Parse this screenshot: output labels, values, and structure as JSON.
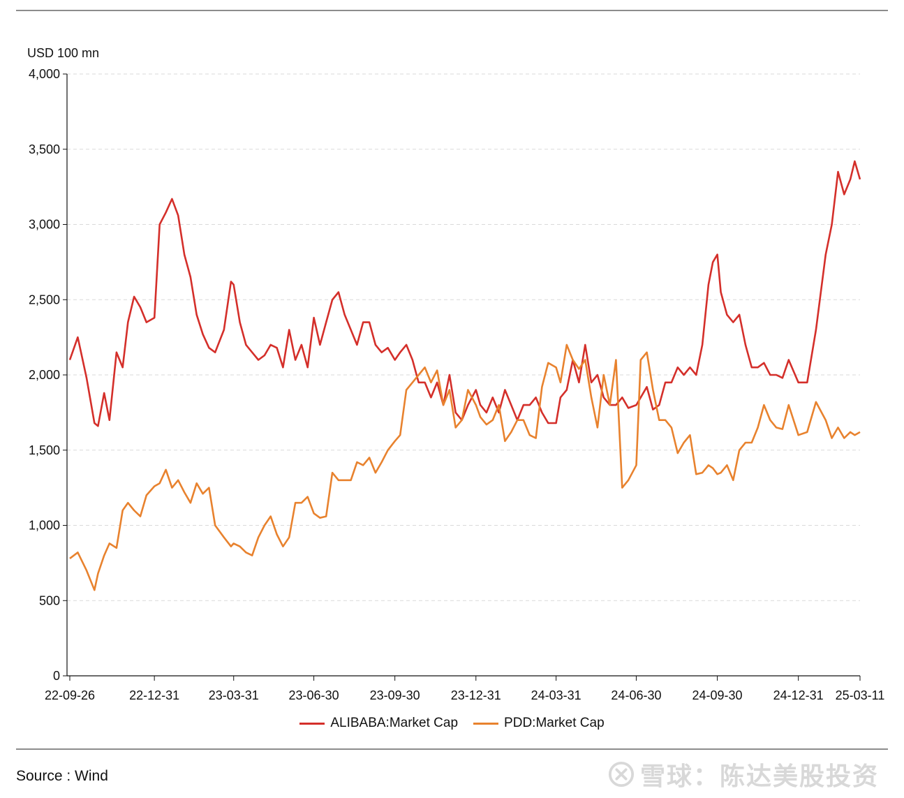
{
  "chart_data": {
    "type": "line",
    "title": "",
    "ylabel": "USD 100 mn",
    "xlabel": "",
    "ylim": [
      0,
      4000
    ],
    "y_ticks": [
      0,
      500,
      1000,
      1500,
      2000,
      2500,
      3000,
      3500,
      4000
    ],
    "y_tick_labels": [
      "0",
      "500",
      "1,000",
      "1,500",
      "2,000",
      "2,500",
      "3,000",
      "3,500",
      "4,000"
    ],
    "x_tick_labels": [
      "22-09-26",
      "22-12-31",
      "23-03-31",
      "23-06-30",
      "23-09-30",
      "23-12-31",
      "24-03-31",
      "24-06-30",
      "24-09-30",
      "24-12-31",
      "25-03-11"
    ],
    "x_tick_dates": [
      "2022-09-26",
      "2022-12-31",
      "2023-03-31",
      "2023-06-30",
      "2023-09-30",
      "2023-12-31",
      "2024-03-31",
      "2024-06-30",
      "2024-09-30",
      "2024-12-31",
      "2025-03-11"
    ],
    "grid": "horizontal dashed",
    "legend_position": "bottom",
    "series": [
      {
        "name": "ALIBABA:Market Cap",
        "color": "#d42f2a",
        "x": [
          "2022-09-26",
          "2022-10-05",
          "2022-10-15",
          "2022-10-24",
          "2022-10-28",
          "2022-11-04",
          "2022-11-10",
          "2022-11-18",
          "2022-11-25",
          "2022-12-01",
          "2022-12-08",
          "2022-12-15",
          "2022-12-22",
          "2022-12-31",
          "2023-01-06",
          "2023-01-13",
          "2023-01-20",
          "2023-01-27",
          "2023-02-03",
          "2023-02-10",
          "2023-02-17",
          "2023-02-24",
          "2023-03-03",
          "2023-03-10",
          "2023-03-20",
          "2023-03-28",
          "2023-03-31",
          "2023-04-07",
          "2023-04-14",
          "2023-04-21",
          "2023-04-28",
          "2023-05-05",
          "2023-05-12",
          "2023-05-19",
          "2023-05-26",
          "2023-06-02",
          "2023-06-09",
          "2023-06-16",
          "2023-06-23",
          "2023-06-30",
          "2023-07-07",
          "2023-07-14",
          "2023-07-21",
          "2023-07-28",
          "2023-08-04",
          "2023-08-11",
          "2023-08-18",
          "2023-08-25",
          "2023-09-01",
          "2023-09-08",
          "2023-09-15",
          "2023-09-22",
          "2023-09-30",
          "2023-10-06",
          "2023-10-13",
          "2023-10-20",
          "2023-10-27",
          "2023-11-03",
          "2023-11-10",
          "2023-11-17",
          "2023-11-24",
          "2023-12-01",
          "2023-12-08",
          "2023-12-15",
          "2023-12-22",
          "2023-12-31",
          "2024-01-05",
          "2024-01-12",
          "2024-01-19",
          "2024-01-26",
          "2024-02-02",
          "2024-02-09",
          "2024-02-16",
          "2024-02-23",
          "2024-03-01",
          "2024-03-08",
          "2024-03-15",
          "2024-03-22",
          "2024-03-31",
          "2024-04-05",
          "2024-04-12",
          "2024-04-19",
          "2024-04-26",
          "2024-05-03",
          "2024-05-10",
          "2024-05-17",
          "2024-05-24",
          "2024-05-31",
          "2024-06-07",
          "2024-06-14",
          "2024-06-21",
          "2024-06-30",
          "2024-07-05",
          "2024-07-12",
          "2024-07-19",
          "2024-07-26",
          "2024-08-02",
          "2024-08-09",
          "2024-08-16",
          "2024-08-23",
          "2024-08-30",
          "2024-09-06",
          "2024-09-13",
          "2024-09-20",
          "2024-09-25",
          "2024-09-30",
          "2024-10-04",
          "2024-10-11",
          "2024-10-18",
          "2024-10-25",
          "2024-11-01",
          "2024-11-08",
          "2024-11-15",
          "2024-11-22",
          "2024-11-29",
          "2024-12-06",
          "2024-12-13",
          "2024-12-20",
          "2024-12-31",
          "2025-01-10",
          "2025-01-20",
          "2025-01-31",
          "2025-02-07",
          "2025-02-14",
          "2025-02-21",
          "2025-02-28",
          "2025-03-05",
          "2025-03-11"
        ],
        "values": [
          2100,
          2250,
          1980,
          1680,
          1660,
          1880,
          1700,
          2150,
          2050,
          2350,
          2520,
          2450,
          2350,
          2380,
          3000,
          3080,
          3170,
          3060,
          2800,
          2650,
          2400,
          2270,
          2180,
          2150,
          2300,
          2620,
          2600,
          2350,
          2200,
          2150,
          2100,
          2130,
          2200,
          2180,
          2050,
          2300,
          2100,
          2200,
          2050,
          2380,
          2200,
          2350,
          2500,
          2550,
          2400,
          2300,
          2200,
          2350,
          2350,
          2200,
          2150,
          2180,
          2100,
          2150,
          2200,
          2100,
          1950,
          1950,
          1850,
          1950,
          1800,
          2000,
          1750,
          1700,
          1800,
          1900,
          1800,
          1750,
          1850,
          1750,
          1900,
          1800,
          1700,
          1800,
          1800,
          1850,
          1750,
          1680,
          1680,
          1850,
          1900,
          2100,
          1950,
          2200,
          1950,
          2000,
          1850,
          1800,
          1800,
          1850,
          1780,
          1800,
          1850,
          1920,
          1770,
          1800,
          1950,
          1950,
          2050,
          2000,
          2050,
          2000,
          2200,
          2600,
          2750,
          2800,
          2550,
          2400,
          2350,
          2400,
          2200,
          2050,
          2050,
          2080,
          2000,
          2000,
          1980,
          2100,
          1950,
          1950,
          2300,
          2800,
          3000,
          3350,
          3200,
          3300,
          3420,
          3300
        ]
      },
      {
        "name": "PDD:Market Cap",
        "color": "#e8822e",
        "x": [
          "2022-09-26",
          "2022-10-05",
          "2022-10-15",
          "2022-10-24",
          "2022-10-28",
          "2022-11-04",
          "2022-11-10",
          "2022-11-18",
          "2022-11-25",
          "2022-12-01",
          "2022-12-08",
          "2022-12-15",
          "2022-12-22",
          "2022-12-31",
          "2023-01-06",
          "2023-01-13",
          "2023-01-20",
          "2023-01-27",
          "2023-02-03",
          "2023-02-10",
          "2023-02-17",
          "2023-02-24",
          "2023-03-03",
          "2023-03-10",
          "2023-03-20",
          "2023-03-28",
          "2023-03-31",
          "2023-04-07",
          "2023-04-14",
          "2023-04-21",
          "2023-04-28",
          "2023-05-05",
          "2023-05-12",
          "2023-05-19",
          "2023-05-26",
          "2023-06-02",
          "2023-06-09",
          "2023-06-16",
          "2023-06-23",
          "2023-06-30",
          "2023-07-07",
          "2023-07-14",
          "2023-07-21",
          "2023-07-28",
          "2023-08-04",
          "2023-08-11",
          "2023-08-18",
          "2023-08-25",
          "2023-09-01",
          "2023-09-08",
          "2023-09-15",
          "2023-09-22",
          "2023-09-30",
          "2023-10-06",
          "2023-10-13",
          "2023-10-20",
          "2023-10-27",
          "2023-11-03",
          "2023-11-10",
          "2023-11-17",
          "2023-11-24",
          "2023-12-01",
          "2023-12-08",
          "2023-12-15",
          "2023-12-22",
          "2023-12-31",
          "2024-01-05",
          "2024-01-12",
          "2024-01-19",
          "2024-01-26",
          "2024-02-02",
          "2024-02-09",
          "2024-02-16",
          "2024-02-23",
          "2024-03-01",
          "2024-03-08",
          "2024-03-15",
          "2024-03-22",
          "2024-03-31",
          "2024-04-05",
          "2024-04-12",
          "2024-04-19",
          "2024-04-26",
          "2024-05-03",
          "2024-05-10",
          "2024-05-17",
          "2024-05-24",
          "2024-05-31",
          "2024-06-07",
          "2024-06-14",
          "2024-06-21",
          "2024-06-30",
          "2024-07-05",
          "2024-07-12",
          "2024-07-19",
          "2024-07-26",
          "2024-08-02",
          "2024-08-09",
          "2024-08-16",
          "2024-08-23",
          "2024-08-30",
          "2024-09-06",
          "2024-09-13",
          "2024-09-20",
          "2024-09-25",
          "2024-09-30",
          "2024-10-04",
          "2024-10-11",
          "2024-10-18",
          "2024-10-25",
          "2024-11-01",
          "2024-11-08",
          "2024-11-15",
          "2024-11-22",
          "2024-11-29",
          "2024-12-06",
          "2024-12-13",
          "2024-12-20",
          "2024-12-31",
          "2025-01-10",
          "2025-01-20",
          "2025-01-31",
          "2025-02-07",
          "2025-02-14",
          "2025-02-21",
          "2025-02-28",
          "2025-03-05",
          "2025-03-11"
        ],
        "values": [
          780,
          820,
          700,
          570,
          680,
          800,
          880,
          850,
          1100,
          1150,
          1100,
          1060,
          1200,
          1260,
          1280,
          1370,
          1250,
          1300,
          1220,
          1150,
          1280,
          1210,
          1250,
          1000,
          920,
          860,
          880,
          860,
          820,
          800,
          920,
          1000,
          1060,
          940,
          860,
          920,
          1150,
          1150,
          1190,
          1080,
          1050,
          1060,
          1350,
          1300,
          1300,
          1300,
          1420,
          1400,
          1450,
          1350,
          1420,
          1500,
          1560,
          1600,
          1900,
          1950,
          2000,
          2050,
          1950,
          2030,
          1800,
          1900,
          1650,
          1700,
          1900,
          1800,
          1720,
          1670,
          1700,
          1800,
          1560,
          1620,
          1700,
          1700,
          1600,
          1580,
          1920,
          2080,
          2050,
          1950,
          2200,
          2100,
          2040,
          2100,
          1850,
          1650,
          2000,
          1800,
          2100,
          1250,
          1300,
          1400,
          2100,
          2150,
          1900,
          1700,
          1700,
          1650,
          1480,
          1550,
          1600,
          1340,
          1350,
          1400,
          1380,
          1340,
          1350,
          1400,
          1300,
          1500,
          1550,
          1550,
          1650,
          1800,
          1700,
          1650,
          1640,
          1800,
          1600,
          1620,
          1820,
          1700,
          1580,
          1650,
          1580,
          1620,
          1600,
          1620
        ]
      }
    ]
  },
  "legend": {
    "alibaba": "ALIBABA:Market Cap",
    "pdd": "PDD:Market Cap"
  },
  "colors": {
    "alibaba": "#d42f2a",
    "pdd": "#e8822e"
  },
  "source": "Source : Wind",
  "watermark": "雪球：陈达美股投资"
}
